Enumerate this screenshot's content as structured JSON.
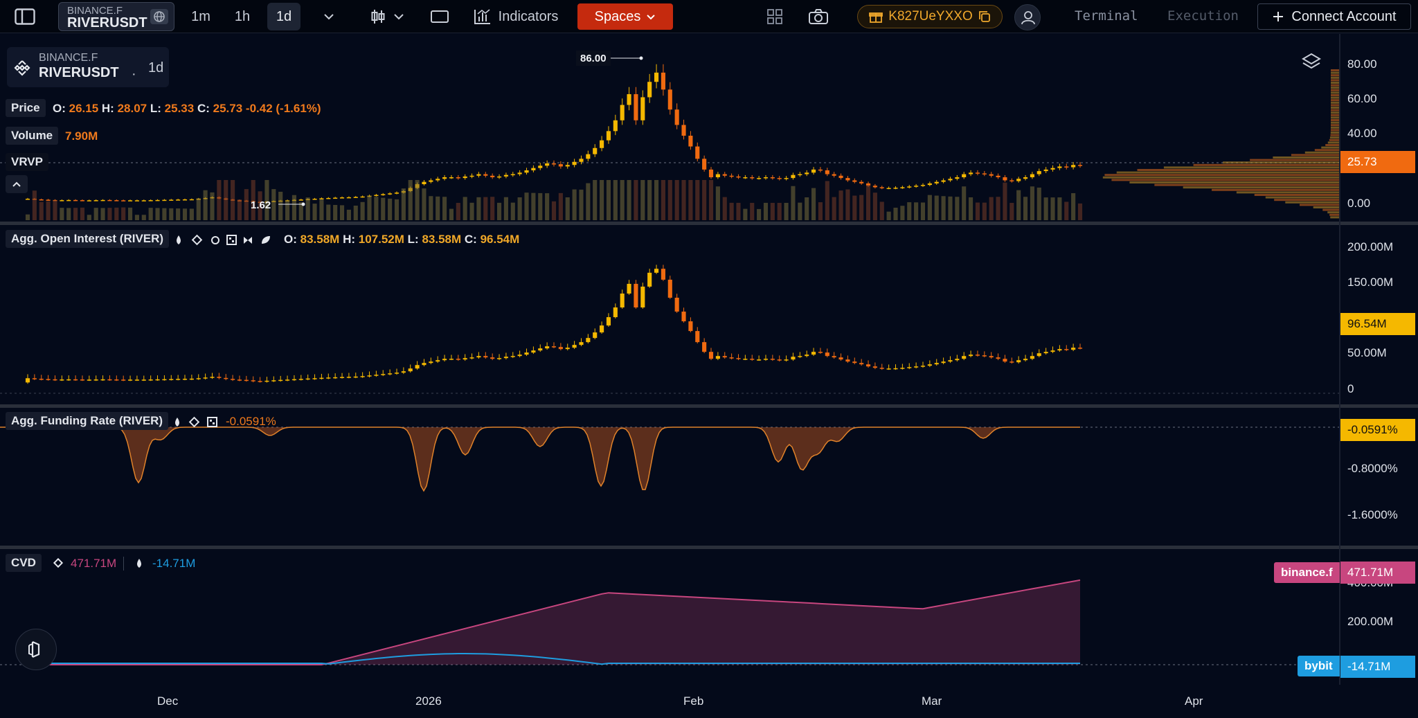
{
  "topbar": {
    "symbol": {
      "exchange": "BINANCE.F",
      "name": "RIVERUSDT"
    },
    "timeframes": [
      "1m",
      "1h",
      "1d"
    ],
    "indicators_label": "Indicators",
    "spaces_label": "Spaces",
    "referral_code": "K827UeYXXO",
    "terminal_label": "Terminal",
    "execution_label": "Execution",
    "connect_label": "Connect Account"
  },
  "symbol_box": {
    "exchange": "BINANCE.F",
    "name": "RIVERUSDT",
    "separator": "·",
    "timeframe": "1d"
  },
  "price_pane": {
    "label": "Price",
    "ohlc": {
      "o_label": "O:",
      "o": "26.15",
      "h_label": "H:",
      "h": "28.07",
      "l_label": "L:",
      "l": "25.33",
      "c_label": "C:",
      "c": "25.73",
      "change": "-0.42",
      "change_pct": "(-1.61%)"
    },
    "volume_label": "Volume",
    "volume_value": "7.90M",
    "vrvp_label": "VRVP",
    "high_marker": "86.00",
    "low_marker": "1.62",
    "axis": [
      "80.00",
      "60.00",
      "40.00",
      "0.00"
    ],
    "last_price_tag": "25.73"
  },
  "oi_pane": {
    "label": "Agg. Open Interest (RIVER)",
    "ohlc": {
      "o_label": "O:",
      "o": "83.58M",
      "h_label": "H:",
      "h": "107.52M",
      "l_label": "L:",
      "l": "83.58M",
      "c_label": "C:",
      "c": "96.54M"
    },
    "axis": [
      "200.00M",
      "150.00M",
      "50.00M",
      "0"
    ],
    "last_tag": "96.54M"
  },
  "funding_pane": {
    "label": "Agg. Funding Rate (RIVER)",
    "value": "-0.0591%",
    "axis": [
      "-0.8000%",
      "-1.6000%"
    ],
    "last_tag": "-0.0591%"
  },
  "cvd_pane": {
    "label": "CVD",
    "binance_value": "471.71M",
    "bybit_value": "-14.71M",
    "axis": [
      "400.00M",
      "200.00M"
    ],
    "binance_tag_name": "binance.f",
    "binance_tag_value": "471.71M",
    "bybit_tag_name": "bybit",
    "bybit_tag_value": "-14.71M"
  },
  "x_axis": [
    "Dec",
    "2026",
    "Feb",
    "Mar",
    "Apr"
  ],
  "colors": {
    "up": "#f5b800",
    "down": "#f06a10",
    "spaces": "#c52a0e",
    "binance": "#c8467f",
    "bybit": "#1e9de0"
  },
  "chart_data": [
    {
      "type": "candlestick",
      "title": "RIVERUSDT price",
      "ylim": [
        0,
        90
      ],
      "last": {
        "open": 26.15,
        "high": 28.07,
        "low": 25.33,
        "close": 25.73
      },
      "close_series": [
        4.0,
        3.6,
        3.4,
        3.2,
        3.0,
        3.1,
        3.2,
        3.1,
        3.0,
        3.0,
        3.1,
        3.2,
        3.1,
        3.0,
        2.9,
        3.0,
        3.0,
        3.0,
        3.1,
        3.2,
        3.3,
        3.4,
        3.5,
        3.6,
        3.7,
        4.0,
        4.5,
        5.0,
        4.2,
        3.5,
        3.0,
        2.8,
        2.5,
        2.0,
        1.8,
        2.2,
        2.5,
        2.8,
        3.0,
        3.3,
        3.5,
        3.8,
        4.0,
        4.3,
        4.5,
        4.7,
        4.9,
        5.0,
        5.2,
        5.5,
        6.0,
        6.5,
        7.0,
        7.5,
        8.0,
        9.0,
        11.0,
        13.5,
        15.0,
        16.0,
        17.0,
        18.0,
        18.0,
        17.5,
        18.5,
        19.0,
        20.0,
        19.0,
        18.0,
        18.5,
        19.5,
        20.0,
        21.0,
        22.5,
        24.0,
        25.5,
        27.0,
        26.5,
        25.0,
        26.0,
        28.0,
        30.0,
        33.0,
        37.0,
        42.0,
        48.0,
        55.0,
        65.0,
        72.0,
        55.0,
        70.0,
        80.0,
        86.0,
        75.0,
        62.0,
        52.0,
        45.0,
        38.0,
        30.0,
        23.0,
        18.0,
        20.0,
        19.0,
        18.5,
        18.0,
        18.0,
        17.5,
        17.5,
        18.0,
        17.5,
        17.0,
        17.5,
        19.5,
        20.0,
        21.0,
        23.0,
        22.5,
        20.0,
        19.0,
        17.5,
        16.0,
        15.0,
        14.0,
        12.5,
        11.5,
        11.0,
        11.0,
        11.2,
        11.5,
        12.0,
        12.5,
        13.0,
        14.0,
        15.0,
        16.0,
        17.0,
        18.0,
        20.0,
        21.0,
        20.5,
        20.0,
        19.0,
        18.0,
        16.0,
        15.5,
        17.0,
        18.0,
        20.0,
        22.0,
        23.0,
        24.0,
        25.0,
        24.5,
        26.0,
        25.73
      ]
    },
    {
      "type": "candlestick",
      "title": "Agg. Open Interest (RIVER)",
      "ylim": [
        0,
        220
      ],
      "last": {
        "open": 83.58,
        "high": 107.52,
        "low": 83.58,
        "close": 96.54
      }
    },
    {
      "type": "area",
      "title": "Agg. Funding Rate (RIVER)",
      "ylim": [
        -2.2,
        0.05
      ],
      "last": -0.0591
    },
    {
      "type": "line",
      "title": "CVD",
      "series": [
        {
          "name": "binance.f",
          "last": 471.71
        },
        {
          "name": "bybit",
          "last": -14.71
        }
      ]
    }
  ]
}
